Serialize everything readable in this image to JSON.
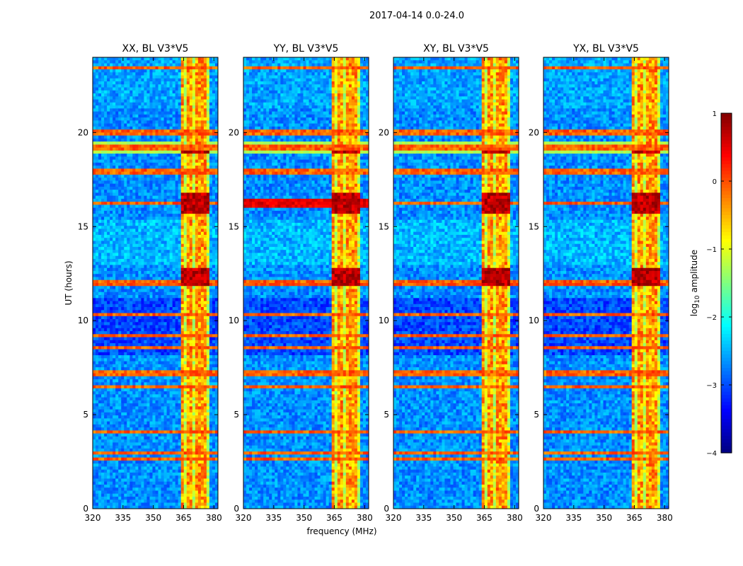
{
  "figure_title": "2017-04-14 0.0-24.0",
  "chart_data": {
    "type": "heatmap",
    "suptitle": "2017-04-14 0.0-24.0",
    "xlabel": "frequency (MHz)",
    "ylabel": "UT (hours)",
    "xlim": [
      320,
      382
    ],
    "ylim": [
      0,
      24
    ],
    "xticks": [
      320,
      335,
      350,
      365,
      380
    ],
    "yticks": [
      0,
      5,
      10,
      15,
      20
    ],
    "panels": [
      {
        "title": "XX, BL V3*V5",
        "pol": "XX"
      },
      {
        "title": "YY, BL V3*V5",
        "pol": "YY"
      },
      {
        "title": "XY, BL V3*V5",
        "pol": "XY"
      },
      {
        "title": "YX, BL V3*V5",
        "pol": "YX"
      }
    ],
    "colorbar": {
      "label": "log10 amplitude",
      "label_base": "log",
      "label_sub": "10",
      "label_rest": " amplitude",
      "colormap": "jet",
      "range": [
        -4,
        1
      ],
      "ticks": [
        "1",
        "0",
        "−1",
        "−2",
        "−3",
        "−4"
      ]
    },
    "features": {
      "rfi_band_mhz": [
        363,
        378
      ],
      "strong_rfi_hours": [
        [
          15.6,
          16.8
        ],
        [
          11.8,
          12.8
        ],
        [
          18.8,
          19.1
        ]
      ],
      "hot_rows_hours": [
        23.5,
        20.0,
        19.2,
        18.0,
        17.8,
        16.2,
        12.0,
        11.9,
        10.3,
        9.2,
        8.5,
        7.2,
        6.5,
        4.1,
        3.0,
        2.6
      ]
    }
  }
}
